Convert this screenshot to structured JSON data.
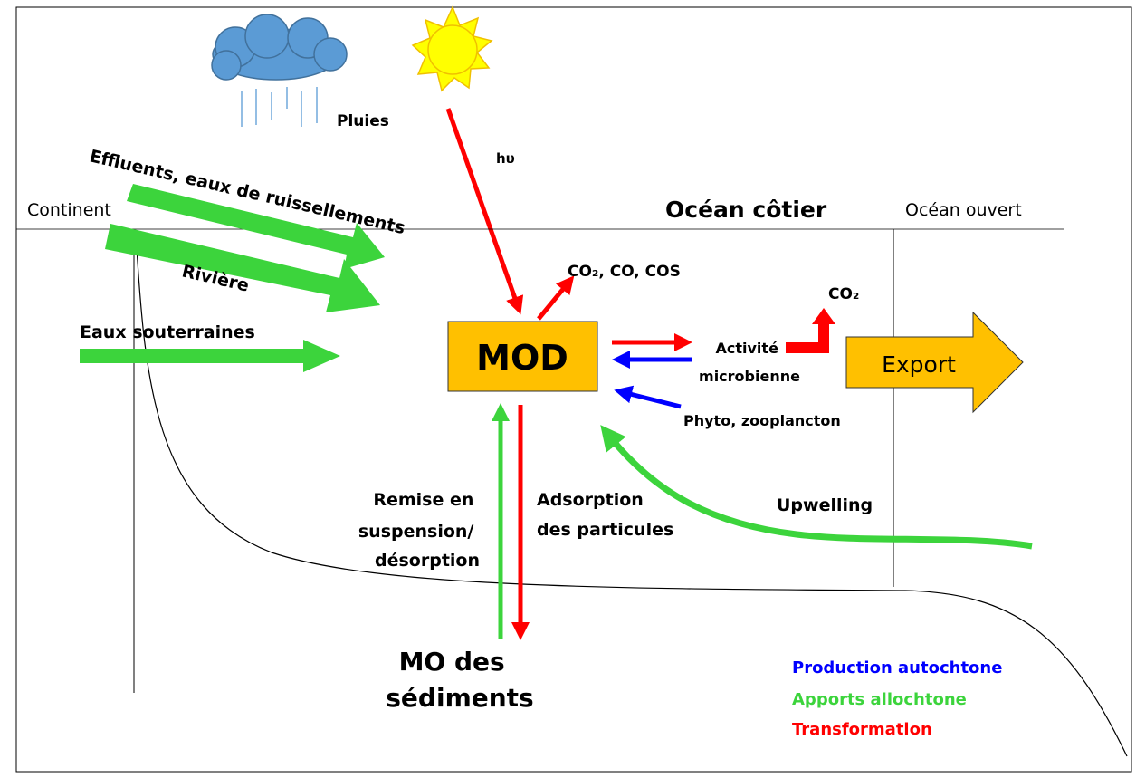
{
  "labels": {
    "rain": "Pluies",
    "light": "hυ",
    "effluents": "Effluents, eaux de ruissellements",
    "continent": "Continent",
    "coastal_ocean": "Océan côtier",
    "open_ocean": "Océan ouvert",
    "river": "Rivière",
    "groundwater": "Eaux souterraines",
    "photo_products": "CO₂, CO, COS",
    "co2": "CO₂",
    "mod": "MOD",
    "microbial": [
      "Activité",
      "microbienne"
    ],
    "export": "Export",
    "plankton": "Phyto, zooplancton",
    "resuspension": [
      "Remise en",
      "suspension/",
      "désorption"
    ],
    "adsorption": [
      "Adsorption",
      "des particules"
    ],
    "upwelling": "Upwelling",
    "sediments": [
      "MO des",
      "sédiments"
    ]
  },
  "legend": [
    "Production autochtone",
    "Apports allochtone",
    "Transformation"
  ]
}
